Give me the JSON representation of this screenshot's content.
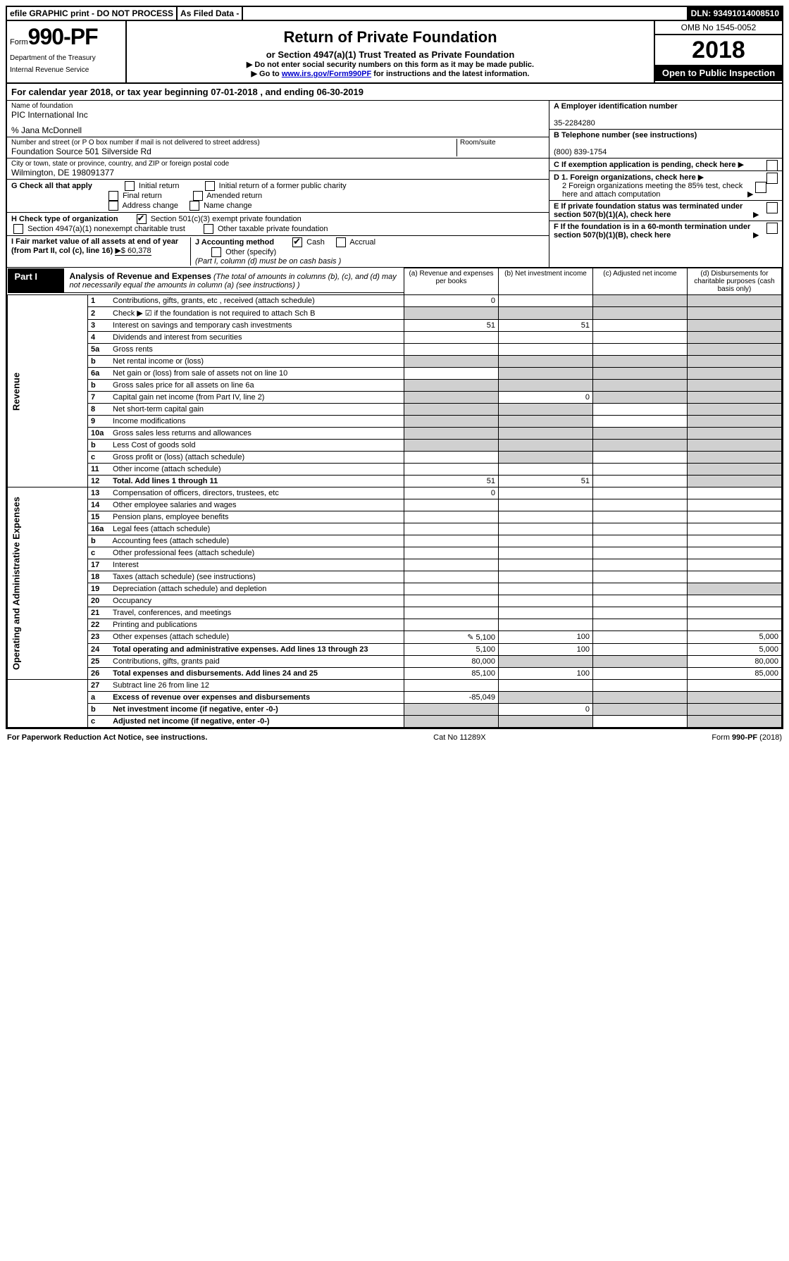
{
  "top_bar": {
    "efile": "efile GRAPHIC print - DO NOT PROCESS",
    "as_filed": "As Filed Data -",
    "dln": "DLN: 93491014008510"
  },
  "header": {
    "form_prefix": "Form",
    "form_num": "990-PF",
    "dept1": "Department of the Treasury",
    "dept2": "Internal Revenue Service",
    "title": "Return of Private Foundation",
    "subtitle": "or Section 4947(a)(1) Trust Treated as Private Foundation",
    "notice1": "▶ Do not enter social security numbers on this form as it may be made public.",
    "notice2_pre": "▶ Go to ",
    "notice2_link": "www.irs.gov/Form990PF",
    "notice2_post": " for instructions and the latest information.",
    "omb": "OMB No 1545-0052",
    "year": "2018",
    "inspect": "Open to Public Inspection"
  },
  "cal_year": "For calendar year 2018, or tax year beginning 07-01-2018            , and ending 06-30-2019",
  "foundation": {
    "name_label": "Name of foundation",
    "name": "PIC International Inc",
    "co": "% Jana McDonnell",
    "addr_label": "Number and street (or P O  box number if mail is not delivered to street address)",
    "addr": "Foundation Source 501 Silverside Rd",
    "room_label": "Room/suite",
    "city_label": "City or town, state or province, country, and ZIP or foreign postal code",
    "city": "Wilmington, DE  198091377"
  },
  "right_info": {
    "a_label": "A Employer identification number",
    "a_val": "35-2284280",
    "b_label": "B Telephone number (see instructions)",
    "b_val": "(800) 839-1754",
    "c_label": "C If exemption application is pending, check here",
    "d1": "D 1. Foreign organizations, check here",
    "d2": "2 Foreign organizations meeting the 85% test, check here and attach computation",
    "e": "E  If private foundation status was terminated under section 507(b)(1)(A), check here",
    "f": "F  If the foundation is in a 60-month termination under section 507(b)(1)(B), check here"
  },
  "g_row": {
    "label": "G Check all that apply",
    "opts": [
      "Initial return",
      "Initial return of a former public charity",
      "Final return",
      "Amended return",
      "Address change",
      "Name change"
    ]
  },
  "h_row": {
    "label": "H Check type of organization",
    "opt1": "Section 501(c)(3) exempt private foundation",
    "opt2": "Section 4947(a)(1) nonexempt charitable trust",
    "opt3": "Other taxable private foundation"
  },
  "i_row": {
    "label": "I Fair market value of all assets at end of year (from Part II, col  (c), line 16)",
    "val": "▶$  60,378"
  },
  "j_row": {
    "label": "J Accounting method",
    "cash": "Cash",
    "accrual": "Accrual",
    "other": "Other (specify)",
    "note": "(Part I, column (d) must be on cash basis )"
  },
  "part1": {
    "label": "Part I",
    "title": "Analysis of Revenue and Expenses",
    "note": "(The total of amounts in columns (b), (c), and (d) may not necessarily equal the amounts in column (a) (see instructions) )",
    "col_a": "(a) Revenue and expenses per books",
    "col_b": "(b) Net investment income",
    "col_c": "(c) Adjusted net income",
    "col_d": "(d) Disbursements for charitable purposes (cash basis only)"
  },
  "sections": {
    "revenue": "Revenue",
    "expenses": "Operating and Administrative Expenses"
  },
  "rows": [
    {
      "n": "1",
      "d": "Contributions, gifts, grants, etc , received (attach schedule)",
      "a": "0",
      "b": "",
      "c": "",
      "dcol": "",
      "sec": "rev",
      "grey_cd": true
    },
    {
      "n": "2",
      "d": "Check ▶ ☑ if the foundation is not required to attach Sch B",
      "a": "",
      "b": "",
      "c": "",
      "dcol": "",
      "sec": "rev",
      "all_grey": true
    },
    {
      "n": "3",
      "d": "Interest on savings and temporary cash investments",
      "a": "51",
      "b": "51",
      "c": "",
      "dcol": "",
      "sec": "rev",
      "grey_d": true
    },
    {
      "n": "4",
      "d": "Dividends and interest from securities",
      "a": "",
      "b": "",
      "c": "",
      "dcol": "",
      "sec": "rev",
      "grey_d": true
    },
    {
      "n": "5a",
      "d": "Gross rents",
      "a": "",
      "b": "",
      "c": "",
      "dcol": "",
      "sec": "rev",
      "grey_d": true
    },
    {
      "n": "b",
      "d": "Net rental income or (loss)",
      "a": "",
      "b": "",
      "c": "",
      "dcol": "",
      "sec": "rev",
      "all_grey": true
    },
    {
      "n": "6a",
      "d": "Net gain or (loss) from sale of assets not on line 10",
      "a": "",
      "b": "",
      "c": "",
      "dcol": "",
      "sec": "rev",
      "grey_bcd": true
    },
    {
      "n": "b",
      "d": "Gross sales price for all assets on line 6a",
      "a": "",
      "b": "",
      "c": "",
      "dcol": "",
      "sec": "rev",
      "all_grey": true
    },
    {
      "n": "7",
      "d": "Capital gain net income (from Part IV, line 2)",
      "a": "",
      "b": "0",
      "c": "",
      "dcol": "",
      "sec": "rev",
      "grey_acd": true
    },
    {
      "n": "8",
      "d": "Net short-term capital gain",
      "a": "",
      "b": "",
      "c": "",
      "dcol": "",
      "sec": "rev",
      "grey_abd": true
    },
    {
      "n": "9",
      "d": "Income modifications",
      "a": "",
      "b": "",
      "c": "",
      "dcol": "",
      "sec": "rev",
      "grey_abd": true
    },
    {
      "n": "10a",
      "d": "Gross sales less returns and allowances",
      "a": "",
      "b": "",
      "c": "",
      "dcol": "",
      "sec": "rev",
      "all_grey": true
    },
    {
      "n": "b",
      "d": "Less  Cost of goods sold",
      "a": "",
      "b": "",
      "c": "",
      "dcol": "",
      "sec": "rev",
      "all_grey": true
    },
    {
      "n": "c",
      "d": "Gross profit or (loss) (attach schedule)",
      "a": "",
      "b": "",
      "c": "",
      "dcol": "",
      "sec": "rev",
      "grey_bd": true
    },
    {
      "n": "11",
      "d": "Other income (attach schedule)",
      "a": "",
      "b": "",
      "c": "",
      "dcol": "",
      "sec": "rev",
      "grey_d": true
    },
    {
      "n": "12",
      "d": "Total. Add lines 1 through 11",
      "a": "51",
      "b": "51",
      "c": "",
      "dcol": "",
      "sec": "rev",
      "bold": true,
      "grey_d": true
    },
    {
      "n": "13",
      "d": "Compensation of officers, directors, trustees, etc",
      "a": "0",
      "b": "",
      "c": "",
      "dcol": "",
      "sec": "exp"
    },
    {
      "n": "14",
      "d": "Other employee salaries and wages",
      "a": "",
      "b": "",
      "c": "",
      "dcol": "",
      "sec": "exp"
    },
    {
      "n": "15",
      "d": "Pension plans, employee benefits",
      "a": "",
      "b": "",
      "c": "",
      "dcol": "",
      "sec": "exp"
    },
    {
      "n": "16a",
      "d": "Legal fees (attach schedule)",
      "a": "",
      "b": "",
      "c": "",
      "dcol": "",
      "sec": "exp"
    },
    {
      "n": "b",
      "d": "Accounting fees (attach schedule)",
      "a": "",
      "b": "",
      "c": "",
      "dcol": "",
      "sec": "exp"
    },
    {
      "n": "c",
      "d": "Other professional fees (attach schedule)",
      "a": "",
      "b": "",
      "c": "",
      "dcol": "",
      "sec": "exp"
    },
    {
      "n": "17",
      "d": "Interest",
      "a": "",
      "b": "",
      "c": "",
      "dcol": "",
      "sec": "exp"
    },
    {
      "n": "18",
      "d": "Taxes (attach schedule) (see instructions)",
      "a": "",
      "b": "",
      "c": "",
      "dcol": "",
      "sec": "exp"
    },
    {
      "n": "19",
      "d": "Depreciation (attach schedule) and depletion",
      "a": "",
      "b": "",
      "c": "",
      "dcol": "",
      "sec": "exp",
      "grey_d": true
    },
    {
      "n": "20",
      "d": "Occupancy",
      "a": "",
      "b": "",
      "c": "",
      "dcol": "",
      "sec": "exp"
    },
    {
      "n": "21",
      "d": "Travel, conferences, and meetings",
      "a": "",
      "b": "",
      "c": "",
      "dcol": "",
      "sec": "exp"
    },
    {
      "n": "22",
      "d": "Printing and publications",
      "a": "",
      "b": "",
      "c": "",
      "dcol": "",
      "sec": "exp"
    },
    {
      "n": "23",
      "d": "Other expenses (attach schedule)",
      "a": "5,100",
      "b": "100",
      "c": "",
      "dcol": "5,000",
      "sec": "exp",
      "icon": true
    },
    {
      "n": "24",
      "d": "Total operating and administrative expenses. Add lines 13 through 23",
      "a": "5,100",
      "b": "100",
      "c": "",
      "dcol": "5,000",
      "sec": "exp",
      "bold": true
    },
    {
      "n": "25",
      "d": "Contributions, gifts, grants paid",
      "a": "80,000",
      "b": "",
      "c": "",
      "dcol": "80,000",
      "sec": "exp",
      "grey_bc": true
    },
    {
      "n": "26",
      "d": "Total expenses and disbursements. Add lines 24 and 25",
      "a": "85,100",
      "b": "100",
      "c": "",
      "dcol": "85,000",
      "sec": "exp",
      "bold": true
    },
    {
      "n": "27",
      "d": "Subtract line 26 from line 12",
      "a": "",
      "b": "",
      "c": "",
      "dcol": "",
      "sec": "sum",
      "grey_all_but_none": true
    },
    {
      "n": "a",
      "d": "Excess of revenue over expenses and disbursements",
      "a": "-85,049",
      "b": "",
      "c": "",
      "dcol": "",
      "sec": "sum",
      "bold": true,
      "grey_bcd": true
    },
    {
      "n": "b",
      "d": "Net investment income (if negative, enter -0-)",
      "a": "",
      "b": "0",
      "c": "",
      "dcol": "",
      "sec": "sum",
      "bold": true,
      "grey_acd": true
    },
    {
      "n": "c",
      "d": "Adjusted net income (if negative, enter -0-)",
      "a": "",
      "b": "",
      "c": "",
      "dcol": "",
      "sec": "sum",
      "bold": true,
      "grey_abd": true
    }
  ],
  "footer": {
    "left": "For Paperwork Reduction Act Notice, see instructions.",
    "mid": "Cat  No  11289X",
    "right": "Form 990-PF (2018)"
  }
}
